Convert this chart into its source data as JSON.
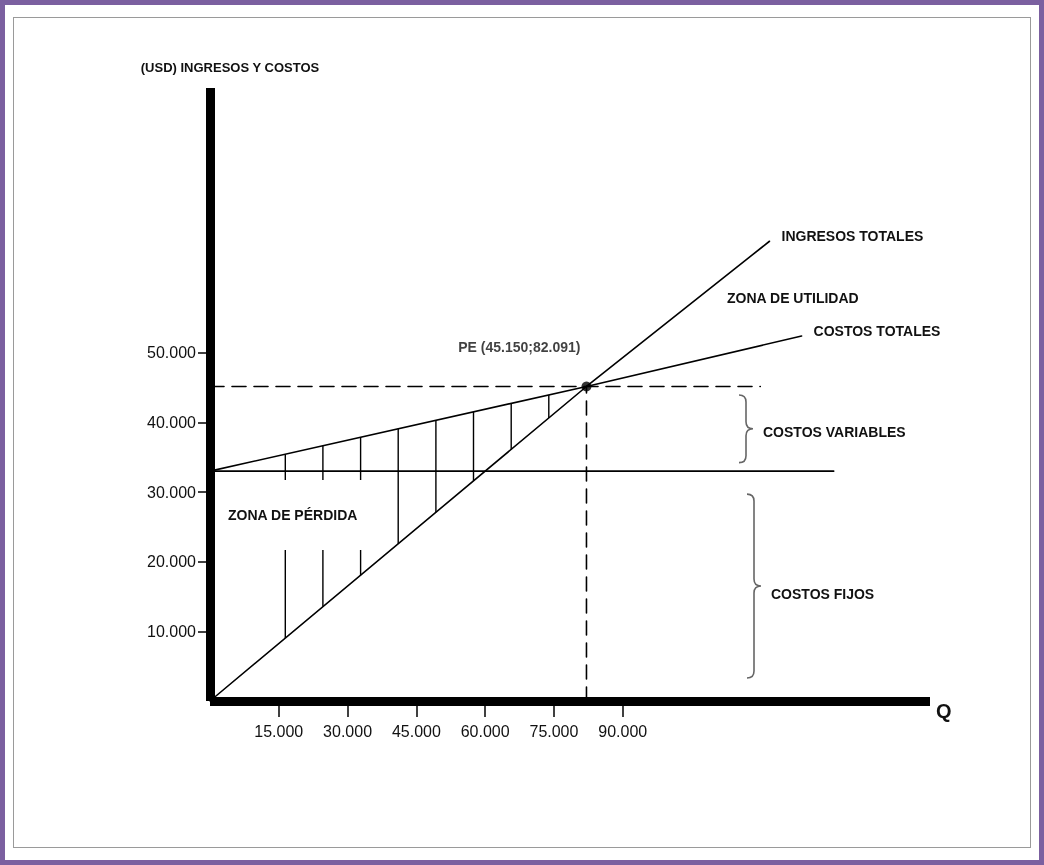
{
  "chart_data": {
    "type": "line",
    "xlabel": "Q",
    "ylabel": "(USD) INGRESOS Y COSTOS",
    "xlim": [
      0,
      157000
    ],
    "ylim": [
      0,
      88000
    ],
    "xticks": [
      {
        "value": 15000,
        "label": "15.000"
      },
      {
        "value": 30000,
        "label": "30.000"
      },
      {
        "value": 45000,
        "label": "45.000"
      },
      {
        "value": 60000,
        "label": "60.000"
      },
      {
        "value": 75000,
        "label": "75.000"
      },
      {
        "value": 90000,
        "label": "90.000"
      }
    ],
    "yticks": [
      {
        "value": 10000,
        "label": "10.000"
      },
      {
        "value": 20000,
        "label": "20.000"
      },
      {
        "value": 30000,
        "label": "30.000"
      },
      {
        "value": 40000,
        "label": "40.000"
      },
      {
        "value": 50000,
        "label": "50.000"
      }
    ],
    "grid": false,
    "legend": false,
    "marker": "none",
    "line_style": "solid",
    "series": [
      {
        "name": "INGRESOS TOTALES",
        "color": "#000000",
        "x": [
          0,
          82091,
          122000
        ],
        "values": [
          0,
          45150,
          66000
        ]
      },
      {
        "name": "COSTOS TOTALES",
        "color": "#000000",
        "x": [
          0,
          82091,
          129000
        ],
        "values": [
          33000,
          45150,
          52400
        ]
      },
      {
        "color": "#000000",
        "x": [
          0,
          136000
        ],
        "values": [
          33000,
          33000
        ]
      },
      {
        "color": "#000000",
        "line_style": "dashed",
        "x": [
          0,
          120000
        ],
        "values": [
          45150,
          45150
        ]
      },
      {
        "color": "#000000",
        "line_style": "dashed",
        "x": [
          82091,
          82091
        ],
        "values": [
          0,
          45150
        ]
      },
      {
        "type": "scatter",
        "color": "#000000",
        "marker": "circle",
        "x": [
          82091
        ],
        "values": [
          45150
        ],
        "value_labels": [
          "PE (45.150;82.091)"
        ]
      }
    ],
    "annotations": [
      "ZONA DE UTILIDAD",
      "COSTOS VARIABLES",
      "ZONA DE PÉRDIDA",
      "COSTOS FIJOS"
    ]
  }
}
